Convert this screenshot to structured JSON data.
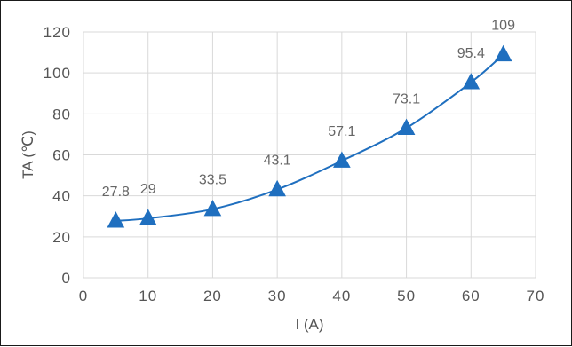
{
  "chart_data": {
    "type": "line",
    "xlabel": "I (A)",
    "ylabel": "TA (℃)",
    "xlim": [
      0,
      70
    ],
    "ylim": [
      0,
      120
    ],
    "x_ticks": [
      0,
      10,
      20,
      30,
      40,
      50,
      60,
      70
    ],
    "y_ticks": [
      0,
      20,
      40,
      60,
      80,
      100,
      120
    ],
    "grid": true,
    "legend": "none",
    "marker": "triangle",
    "series": [
      {
        "x": [
          5,
          10,
          20,
          30,
          40,
          50,
          60,
          65
        ],
        "y": [
          27.8,
          29,
          33.5,
          43.1,
          57.1,
          73.1,
          95.4,
          109
        ],
        "labels": [
          "27.8",
          "29",
          "33.5",
          "43.1",
          "57.1",
          "73.1",
          "95.4",
          "109"
        ],
        "color": "#1f6fbf"
      }
    ]
  }
}
